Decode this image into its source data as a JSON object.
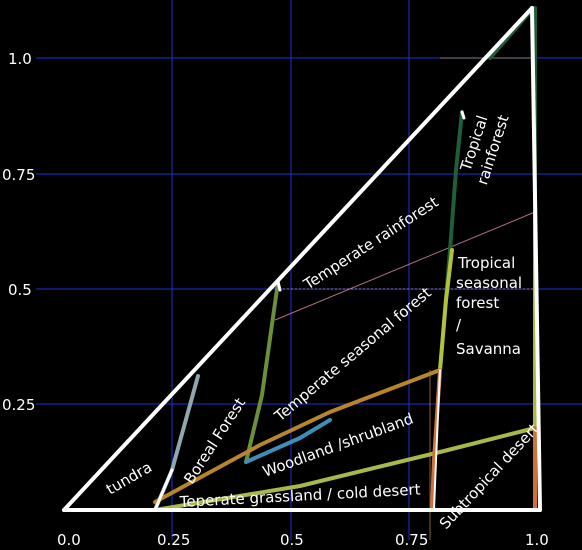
{
  "chart_data": {
    "type": "diagram",
    "x_ticks": [
      "0.0",
      "0.25",
      "0.5",
      "0.75",
      "1.0"
    ],
    "y_ticks": [
      "0.25",
      "0.5",
      "0.75",
      "1.0"
    ],
    "biomes": [
      {
        "key": "tundra",
        "label": "tundra",
        "color": "#9aa9b4"
      },
      {
        "key": "boreal",
        "label": "Boreal Forest",
        "color": "#8fa7ae"
      },
      {
        "key": "temp_rain",
        "label": "Temperate rainforest",
        "color": "#6b8f3a"
      },
      {
        "key": "temp_seasonal",
        "label": "Temperate seasonal forest",
        "color": "#3d8fb8"
      },
      {
        "key": "woodland",
        "label": "Woodland /shrubland",
        "color": "#b8862a"
      },
      {
        "key": "grassland",
        "label": "Teperate grassland / cold desert",
        "color": "#a9b84a"
      },
      {
        "key": "trop_rain",
        "label": [
          "Tropical",
          "rainforest"
        ],
        "color": "#1f5e3a"
      },
      {
        "key": "trop_seasonal",
        "label": [
          "Tropical",
          "seasonal",
          "forest",
          "/",
          "Savanna"
        ],
        "color": "#b3c23c"
      },
      {
        "key": "subtrop_desert",
        "label": "Subtropical desert",
        "color": "#d0703c"
      }
    ],
    "grid": true
  }
}
